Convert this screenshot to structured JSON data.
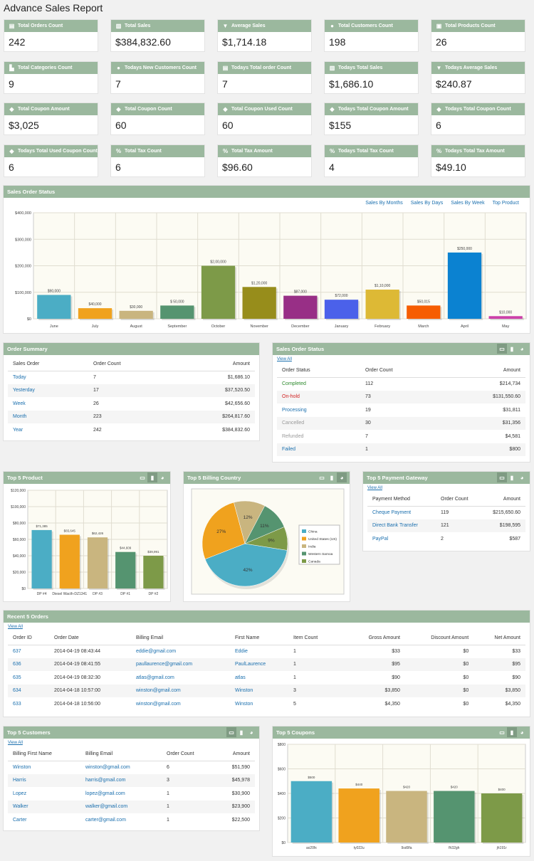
{
  "page_title": "Advance Sales Report",
  "cards": [
    {
      "label": "Total Orders Count",
      "value": "242",
      "icon": "receipt-icon"
    },
    {
      "label": "Total Sales",
      "value": "$384,832.60",
      "icon": "bar-chart-icon"
    },
    {
      "label": "Average Sales",
      "value": "$1,714.18",
      "icon": "filter-icon"
    },
    {
      "label": "Total Customers Count",
      "value": "198",
      "icon": "users-icon"
    },
    {
      "label": "Total Products Count",
      "value": "26",
      "icon": "product-icon"
    },
    {
      "label": "Total Categories Count",
      "value": "9",
      "icon": "sitemap-icon"
    },
    {
      "label": "Todays New Customers Count",
      "value": "7",
      "icon": "users-icon"
    },
    {
      "label": "Todays Total order Count",
      "value": "7",
      "icon": "receipt-icon"
    },
    {
      "label": "Todays Total Sales",
      "value": "$1,686.10",
      "icon": "bar-chart-icon"
    },
    {
      "label": "Todays Average Sales",
      "value": "$240.87",
      "icon": "filter-icon"
    },
    {
      "label": "Total Coupon Amount",
      "value": "$3,025",
      "icon": "tag-icon"
    },
    {
      "label": "Total Coupon Count",
      "value": "60",
      "icon": "tag-icon"
    },
    {
      "label": "Total Coupon Used Count",
      "value": "60",
      "icon": "tag-icon"
    },
    {
      "label": "Todays Total Coupon Amount",
      "value": "$155",
      "icon": "tag-icon"
    },
    {
      "label": "Todays Total Coupon Count",
      "value": "6",
      "icon": "tag-icon"
    },
    {
      "label": "Todays Total Used Coupon Count",
      "value": "6",
      "icon": "tag-icon"
    },
    {
      "label": "Total Tax Count",
      "value": "6",
      "icon": "percent-icon"
    },
    {
      "label": "Total Tax Amount",
      "value": "$96.60",
      "icon": "percent-icon"
    },
    {
      "label": "Todays Total Tax Count",
      "value": "4",
      "icon": "percent-icon"
    },
    {
      "label": "Todays Total Tax Amount",
      "value": "$49.10",
      "icon": "percent-icon"
    }
  ],
  "sales_order_status": {
    "title": "Sales Order Status",
    "links": [
      "Sales By Months",
      "Sales By Days",
      "Sales By Week",
      "Top Product"
    ]
  },
  "order_summary": {
    "title": "Order Summary",
    "headers": [
      "Sales Order",
      "Order Count",
      "Amount"
    ],
    "rows": [
      [
        "Today",
        "7",
        "$1,686.10"
      ],
      [
        "Yesterday",
        "17",
        "$37,520.50"
      ],
      [
        "Week",
        "26",
        "$42,656.60"
      ],
      [
        "Month",
        "223",
        "$264,817.60"
      ],
      [
        "Year",
        "242",
        "$384,832.60"
      ]
    ]
  },
  "order_status": {
    "title": "Sales Order Status",
    "view_all": "View All",
    "headers": [
      "Order Status",
      "Order Count",
      "Amount"
    ],
    "rows": [
      [
        "Completed",
        "112",
        "$214,734"
      ],
      [
        "On-hold",
        "73",
        "$131,550.60"
      ],
      [
        "Processing",
        "19",
        "$31,811"
      ],
      [
        "Cancelled",
        "30",
        "$31,356"
      ],
      [
        "Refunded",
        "7",
        "$4,581"
      ],
      [
        "Failed",
        "1",
        "$800"
      ]
    ],
    "colors": [
      "#2c8a2c",
      "#d02020",
      "#1a6fae",
      "#999999",
      "#999999",
      "#1a6fae"
    ]
  },
  "top_product": {
    "title": "Top 5 Product"
  },
  "top_country": {
    "title": "Top 5 Billing Country"
  },
  "top_gateway": {
    "title": "Top 5 Payment Gateway",
    "view_all": "View All",
    "headers": [
      "Payment Method",
      "Order Count",
      "Amount"
    ],
    "rows": [
      [
        "Cheque Payment",
        "119",
        "$215,650.60"
      ],
      [
        "Direct Bank Transfer",
        "121",
        "$198,595"
      ],
      [
        "PayPal",
        "2",
        "$587"
      ]
    ]
  },
  "recent_orders": {
    "title": "Recent 5 Orders",
    "view_all": "View All",
    "headers": [
      "Order ID",
      "Order Date",
      "Billing Email",
      "First Name",
      "Item Count",
      "Gross Amount",
      "Discount Amount",
      "Net Amount"
    ],
    "rows": [
      [
        "637",
        "2014-04-19 08:43:44",
        "eddie@gmail.com",
        "Eddie",
        "1",
        "$33",
        "$0",
        "$33"
      ],
      [
        "636",
        "2014-04-19 08:41:55",
        "paullaurence@gmail.com",
        "PaulLaurence",
        "1",
        "$95",
        "$0",
        "$95"
      ],
      [
        "635",
        "2014-04-19 08:32:30",
        "atlas@gmail.com",
        "atlas",
        "1",
        "$90",
        "$0",
        "$90"
      ],
      [
        "634",
        "2014-04-18 10:57:00",
        "winston@gmail.com",
        "Winston",
        "3",
        "$3,850",
        "$0",
        "$3,850"
      ],
      [
        "633",
        "2014-04-18 10:56:00",
        "winston@gmail.com",
        "Winston",
        "5",
        "$4,350",
        "$0",
        "$4,350"
      ]
    ]
  },
  "top_customers": {
    "title": "Top 5 Customers",
    "view_all": "View All",
    "headers": [
      "Billing First Name",
      "Billing Email",
      "Order Count",
      "Amount"
    ],
    "rows": [
      [
        "Winston",
        "winston@gmail.com",
        "6",
        "$51,590"
      ],
      [
        "Harris",
        "harris@gmail.com",
        "3",
        "$45,978"
      ],
      [
        "Lopez",
        "lopez@gmail.com",
        "1",
        "$30,900"
      ],
      [
        "Walker",
        "walker@gmail.com",
        "1",
        "$23,900"
      ],
      [
        "Carter",
        "carter@gmail.com",
        "1",
        "$22,500"
      ]
    ]
  },
  "top_coupons": {
    "title": "Top 5 Coupons"
  },
  "chart_data": [
    {
      "id": "monthly",
      "type": "bar",
      "categories": [
        "June",
        "July",
        "August",
        "September",
        "October",
        "November",
        "December",
        "January",
        "February",
        "March",
        "April",
        "May"
      ],
      "values": [
        90000,
        40000,
        30000,
        50000,
        200000,
        120000,
        87000,
        72000,
        110000,
        50015,
        250000,
        10000
      ],
      "labels": [
        "$90,000",
        "$40,000",
        "$30,000",
        "$ 50,000",
        "$2,00,000",
        "$1,20,000",
        "$87,000",
        "$72,000",
        "$1,10,000",
        "$50,015",
        "$250,000",
        "$10,000"
      ],
      "colors": [
        "#4badc5",
        "#f0a21e",
        "#c9b57f",
        "#559470",
        "#7d9a48",
        "#978d1b",
        "#982f86",
        "#4b61ea",
        "#ddb935",
        "#f65d02",
        "#0b82d1",
        "#cc40a9"
      ],
      "yticks": [
        "$0",
        "$100,000",
        "$200,000",
        "$300,000",
        "$400,000"
      ],
      "ylim": [
        0,
        400000
      ]
    },
    {
      "id": "product",
      "type": "bar",
      "categories": [
        "DP #4",
        "Diesel Wacth-DZ1341",
        "DP #3",
        "DP #1",
        "DP #2"
      ],
      "values": [
        71385,
        65645,
        62426,
        44609,
        39991
      ],
      "labels": [
        "$71,385",
        "$65,645",
        "$62,426",
        "$44,609",
        "$39,991"
      ],
      "colors": [
        "#4badc5",
        "#f0a21e",
        "#c9b57f",
        "#559470",
        "#7d9a48"
      ],
      "yticks": [
        "$0",
        "$20,000",
        "$40,000",
        "$60,000",
        "$80,000",
        "$100,000",
        "$120,000"
      ],
      "ylim": [
        0,
        120000
      ]
    },
    {
      "id": "country",
      "type": "pie",
      "labels": [
        "China",
        "United States (US)",
        "India",
        "Western Samoa",
        "Canada"
      ],
      "values": [
        42,
        27,
        12,
        11,
        9
      ],
      "pcts": [
        "42%",
        "27%",
        "12%",
        "11%",
        "9%"
      ],
      "colors": [
        "#4badc5",
        "#f0a21e",
        "#c9b57f",
        "#559470",
        "#7d9a48"
      ]
    },
    {
      "id": "coupon",
      "type": "bar",
      "categories": [
        "ax20fx",
        "ty022u",
        "9sd9fa",
        "fh32gh",
        "jh191r"
      ],
      "values": [
        500,
        440,
        420,
        420,
        400
      ],
      "labels": [
        "$500",
        "$440",
        "$420",
        "$420",
        "$400"
      ],
      "colors": [
        "#4badc5",
        "#f0a21e",
        "#c9b57f",
        "#559470",
        "#7d9a48"
      ],
      "yticks": [
        "$0",
        "$200",
        "$400",
        "$600",
        "$800"
      ],
      "ylim": [
        0,
        800
      ]
    }
  ]
}
